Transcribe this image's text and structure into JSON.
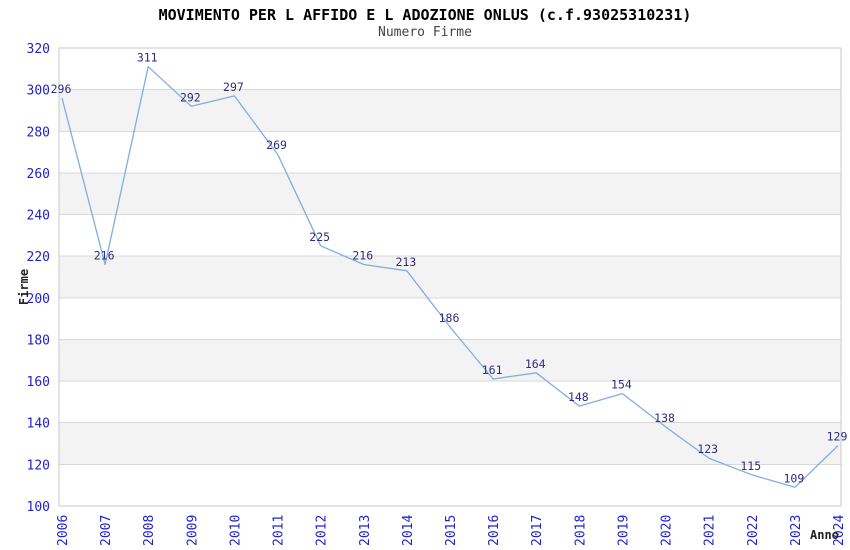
{
  "chart_data": {
    "type": "line",
    "title": "MOVIMENTO PER L AFFIDO E L ADOZIONE ONLUS (c.f.93025310231)",
    "subtitle": "Numero Firme",
    "xlabel": "Anno",
    "ylabel": "Firme",
    "categories": [
      "2006",
      "2007",
      "2008",
      "2009",
      "2010",
      "2011",
      "2012",
      "2013",
      "2014",
      "2015",
      "2016",
      "2017",
      "2018",
      "2019",
      "2020",
      "2021",
      "2022",
      "2023",
      "2024"
    ],
    "series": [
      {
        "name": "Numero Firme",
        "values": [
          296,
          216,
          311,
          292,
          297,
          269,
          225,
          216,
          213,
          186,
          161,
          164,
          148,
          154,
          138,
          123,
          115,
          109,
          129
        ]
      }
    ],
    "ylim": [
      100,
      320
    ],
    "ytick_step": 20,
    "grid": true,
    "show_data_labels": true,
    "legend": "none",
    "colors": {
      "line": "#7dafe3",
      "tick_label": "#2222cc",
      "data_label": "#2d2d82",
      "band": "#f3f3f3",
      "grid": "#d9d9d9",
      "border": "#c9c9c9",
      "plot_background": "#ffffff",
      "title": "#000000",
      "subtitle": "#444444",
      "axis_title": "#222222"
    }
  }
}
